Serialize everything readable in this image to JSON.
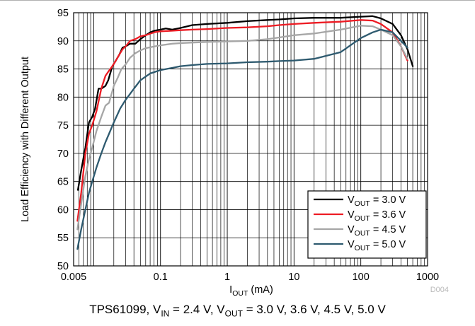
{
  "chart_data": {
    "type": "line",
    "xscale": "log",
    "xlim": [
      0.005,
      1000
    ],
    "ylim": [
      50,
      95
    ],
    "xticks": [
      "0.005",
      "0.1",
      "1",
      "10",
      "100",
      "1000"
    ],
    "xtick_values": [
      0.005,
      0.1,
      1,
      10,
      100,
      1000
    ],
    "yticks": [
      50,
      55,
      60,
      65,
      70,
      75,
      80,
      85,
      90,
      95
    ],
    "xlabel_main": "I",
    "xlabel_sub": "OUT",
    "xlabel_unit": " (mA)",
    "ylabel": "Load Efficiency with Different Output",
    "grid": true,
    "legend_position": "bottom-right",
    "watermark": "D004",
    "caption": {
      "part1": "TPS61099, V",
      "sub1": "IN",
      "part2": " = 2.4 V, V",
      "sub2": "OUT",
      "part3": " = 3.0 V, 3.6 V, 4.5 V, 5.0 V"
    },
    "series": [
      {
        "name_main": "V",
        "name_sub": "OUT",
        "name_rest": " = 3.0 V",
        "color": "#000000",
        "x": [
          0.0058,
          0.0065,
          0.0075,
          0.0085,
          0.0095,
          0.0105,
          0.0118,
          0.013,
          0.015,
          0.0165,
          0.019,
          0.0215,
          0.024,
          0.027,
          0.03,
          0.035,
          0.042,
          0.05,
          0.06,
          0.07,
          0.08,
          0.1,
          0.12,
          0.15,
          0.2,
          0.3,
          0.5,
          1,
          2,
          4,
          6,
          10,
          20,
          50,
          100,
          150,
          200,
          300,
          400,
          500,
          600
        ],
        "y": [
          63.5,
          67,
          71,
          75.5,
          76.5,
          78,
          81.5,
          81.5,
          82,
          83,
          85.5,
          86.5,
          87.5,
          88.8,
          89,
          89.5,
          89.5,
          90.3,
          91,
          91.5,
          91.8,
          92,
          92.2,
          92,
          92.3,
          92.8,
          93,
          93.2,
          93.5,
          93.7,
          93.8,
          94,
          94.1,
          94.1,
          94.3,
          94.4,
          94,
          93,
          91,
          88.5,
          85.5
        ]
      },
      {
        "name_main": "V",
        "name_sub": "OUT",
        "name_rest": " = 3.6 V",
        "color": "#ed1c24",
        "x": [
          0.0057,
          0.0065,
          0.0075,
          0.0085,
          0.0095,
          0.011,
          0.013,
          0.015,
          0.0165,
          0.019,
          0.0215,
          0.024,
          0.027,
          0.03,
          0.035,
          0.042,
          0.05,
          0.06,
          0.08,
          0.1,
          0.15,
          0.2,
          0.3,
          0.5,
          1,
          2,
          4,
          6,
          10,
          20,
          50,
          100,
          150,
          200,
          300,
          400,
          500
        ],
        "y": [
          58,
          63,
          70,
          73.5,
          75,
          77.5,
          81.5,
          83.8,
          84.5,
          85.5,
          86.5,
          87.5,
          88.5,
          89,
          90,
          90.3,
          90.8,
          91,
          91.5,
          91.7,
          91.8,
          91.9,
          92,
          92.1,
          92.3,
          92.4,
          92.6,
          92.8,
          93,
          93.2,
          93.4,
          93.7,
          93.6,
          93,
          91.5,
          89,
          86.5
        ]
      },
      {
        "name_main": "V",
        "name_sub": "OUT",
        "name_rest": " = 4.5 V",
        "color": "#a6a6a6",
        "x": [
          0.0057,
          0.0065,
          0.0075,
          0.0085,
          0.0095,
          0.011,
          0.013,
          0.015,
          0.017,
          0.02,
          0.023,
          0.026,
          0.03,
          0.035,
          0.042,
          0.05,
          0.06,
          0.08,
          0.1,
          0.15,
          0.2,
          0.3,
          0.5,
          1,
          2,
          4,
          6,
          10,
          20,
          50,
          100,
          150,
          200,
          300,
          400,
          500
        ],
        "y": [
          56.5,
          61,
          66,
          69,
          71,
          74,
          76.5,
          78.5,
          79,
          82,
          83.5,
          85,
          85.8,
          87,
          87.8,
          88.3,
          88.7,
          89,
          89.2,
          89.5,
          89.6,
          89.7,
          89.8,
          89.9,
          90,
          90.3,
          90.6,
          91,
          91.3,
          92,
          92.7,
          92.6,
          92,
          91,
          89,
          86.8
        ]
      },
      {
        "name_main": "V",
        "name_sub": "OUT",
        "name_rest": " = 5.0 V",
        "color": "#2e5a6f",
        "x": [
          0.0057,
          0.0065,
          0.0075,
          0.0085,
          0.0095,
          0.011,
          0.013,
          0.015,
          0.017,
          0.02,
          0.025,
          0.03,
          0.04,
          0.05,
          0.07,
          0.1,
          0.15,
          0.2,
          0.3,
          0.5,
          1,
          2,
          4,
          6,
          10,
          20,
          50,
          100,
          150,
          200,
          300,
          400,
          500
        ],
        "y": [
          53,
          56.5,
          60,
          63,
          65,
          67.5,
          70,
          72,
          73.5,
          75.5,
          78,
          79.5,
          81.5,
          83,
          84.2,
          84.8,
          85.2,
          85.5,
          85.7,
          85.9,
          86,
          86.2,
          86.3,
          86.4,
          86.5,
          86.8,
          88,
          90.5,
          91.5,
          92,
          91.5,
          90,
          88.8
        ]
      }
    ]
  }
}
